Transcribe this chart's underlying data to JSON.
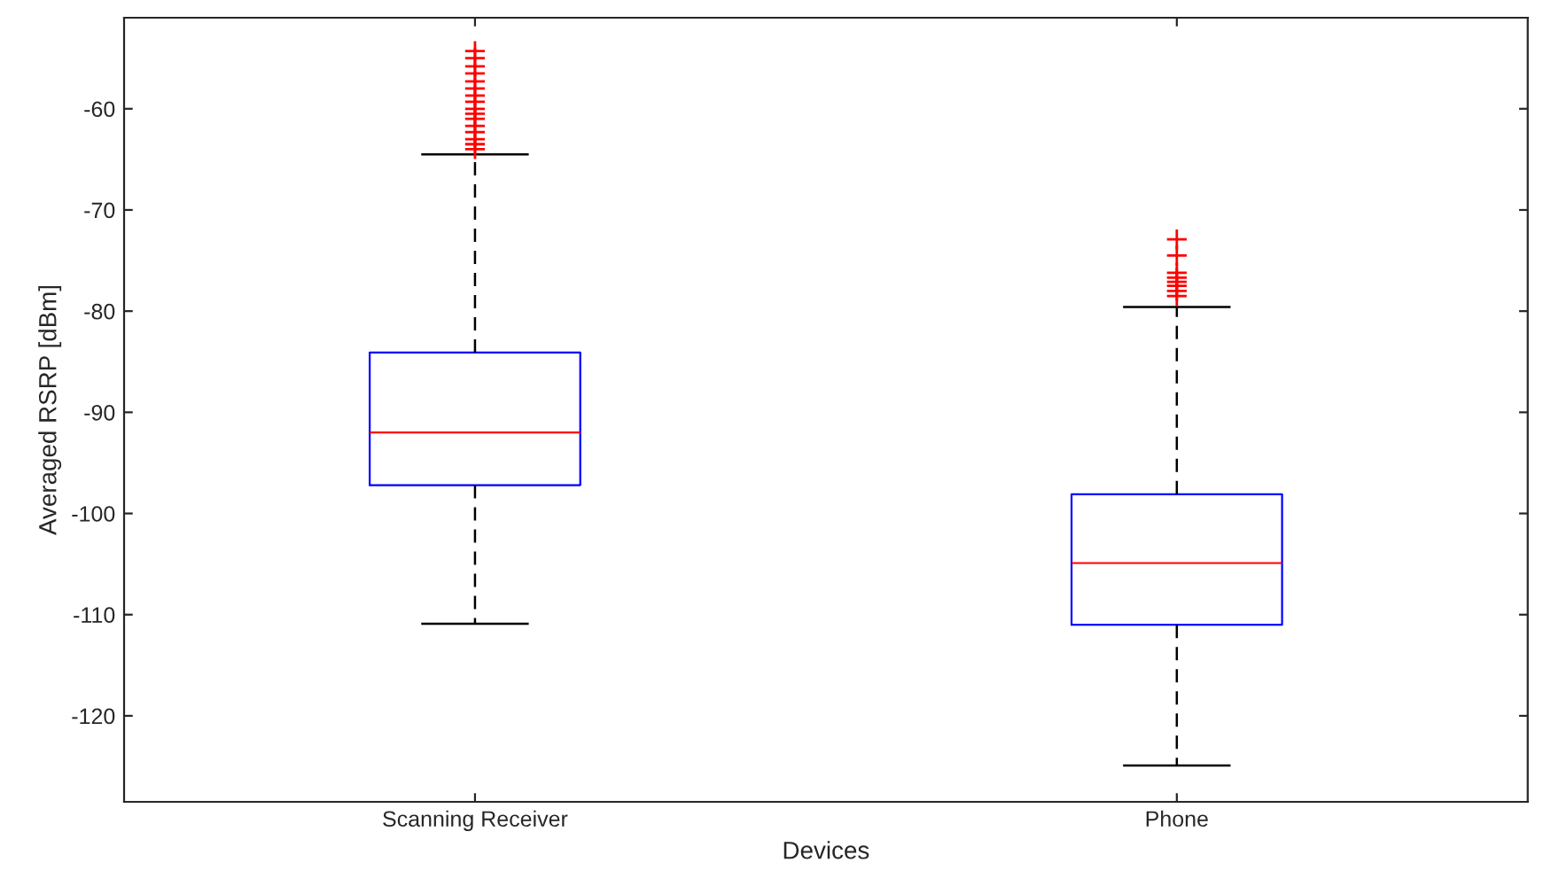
{
  "chart_data": {
    "type": "box",
    "xlabel": "Devices",
    "ylabel": "Averaged RSRP [dBm]",
    "categories": [
      "Scanning Receiver",
      "Phone"
    ],
    "boxes": [
      {
        "low": -110.9,
        "q1": -97.2,
        "median": -92.0,
        "q3": -84.1,
        "high": -64.5,
        "outliers": [
          -54.3,
          -55.0,
          -55.8,
          -56.5,
          -57.3,
          -58.0,
          -58.7,
          -59.3,
          -60.0,
          -60.5,
          -61.0,
          -61.7,
          -62.3,
          -63.0,
          -63.5,
          -64.0
        ]
      },
      {
        "low": -124.9,
        "q1": -111.0,
        "median": -104.9,
        "q3": -98.1,
        "high": -79.6,
        "outliers": [
          -72.9,
          -74.5,
          -76.2,
          -76.7,
          -77.1,
          -77.5,
          -78.0,
          -78.5
        ]
      }
    ],
    "color": "#0000ff",
    "marker": "cross",
    "ylim": [
      -128.5,
      -51
    ],
    "yticks": [
      -120,
      -110,
      -100,
      -90,
      -80,
      -70,
      -60
    ],
    "grid": false
  }
}
